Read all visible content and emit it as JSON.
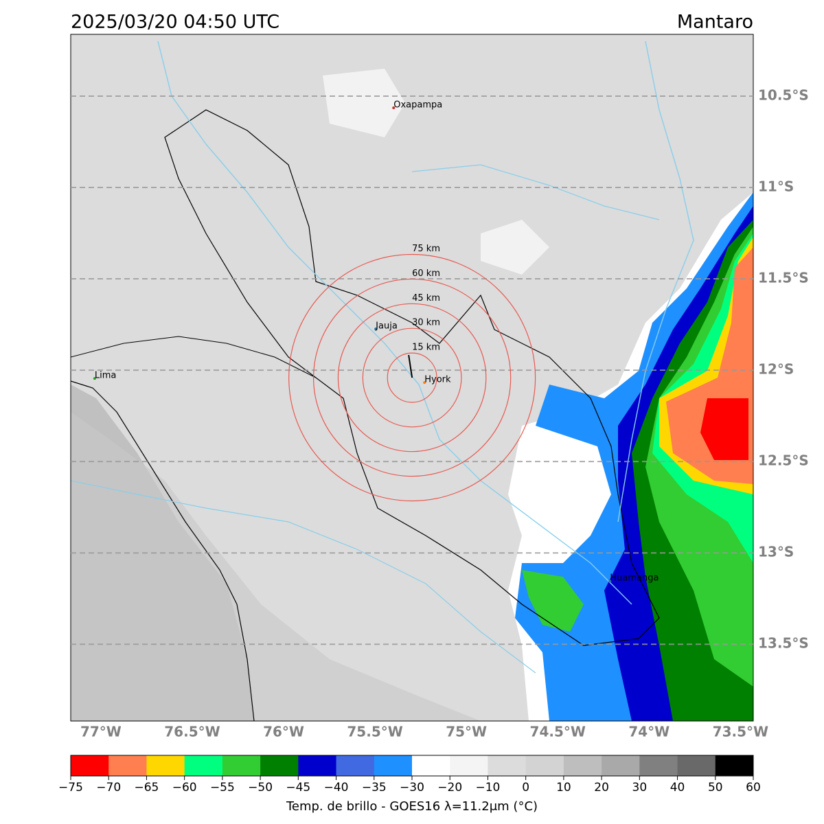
{
  "header": {
    "title": "2025/03/20 04:50 UTC",
    "region": "Mantaro"
  },
  "map": {
    "xlim": [
      -77.165,
      -73.43
    ],
    "ylim": [
      -13.92,
      -10.162
    ],
    "lat_ticks": [
      {
        "value": -10.5,
        "label": "10.5°S"
      },
      {
        "value": -11,
        "label": "11°S"
      },
      {
        "value": -11.5,
        "label": "11.5°S"
      },
      {
        "value": -12,
        "label": "12°S"
      },
      {
        "value": -12.5,
        "label": "12.5°S"
      },
      {
        "value": -13,
        "label": "13°S"
      },
      {
        "value": -13.5,
        "label": "13.5°S"
      }
    ],
    "lon_ticks": [
      {
        "value": -77,
        "label": "77°W"
      },
      {
        "value": -76.5,
        "label": "76.5°W"
      },
      {
        "value": -76,
        "label": "76°W"
      },
      {
        "value": -75.5,
        "label": "75.5°W"
      },
      {
        "value": -75,
        "label": "75°W"
      },
      {
        "value": -74.5,
        "label": "74.5°W"
      },
      {
        "value": -74,
        "label": "74°W"
      },
      {
        "value": -73.5,
        "label": "73.5°W"
      }
    ],
    "places": [
      {
        "name": "Oxapampa",
        "lon": -75.398,
        "lat": -10.564,
        "color": "#d62728"
      },
      {
        "name": "Jauja",
        "lon": -75.496,
        "lat": -11.774,
        "color": "#1f77b4"
      },
      {
        "name": "Lima",
        "lon": -77.034,
        "lat": -12.045,
        "color": "#2ca02c"
      },
      {
        "name": "Hyork",
        "lon": -75.229,
        "lat": -12.068,
        "color": "#ff7f0e"
      },
      {
        "name": "Huamanga",
        "lon": -74.214,
        "lat": -13.154,
        "color": "#1f77b4"
      }
    ],
    "rings": {
      "center": [
        -75.297,
        -12.041
      ],
      "radii_km": [
        15,
        30,
        45,
        60,
        75
      ],
      "labels": [
        "15 km",
        "30 km",
        "45 km",
        "60 km",
        "75 km"
      ],
      "color": "#e8584f"
    }
  },
  "colorbar": {
    "ticks": [
      {
        "value": -75,
        "label": "−75"
      },
      {
        "value": -70,
        "label": "−70"
      },
      {
        "value": -65,
        "label": "−65"
      },
      {
        "value": -60,
        "label": "−60"
      },
      {
        "value": -55,
        "label": "−55"
      },
      {
        "value": -50,
        "label": "−50"
      },
      {
        "value": -45,
        "label": "−45"
      },
      {
        "value": -40,
        "label": "−40"
      },
      {
        "value": -35,
        "label": "−35"
      },
      {
        "value": -30,
        "label": "−30"
      },
      {
        "value": -20,
        "label": "−20"
      },
      {
        "value": -10,
        "label": "−10"
      },
      0,
      10,
      20,
      30,
      40,
      50,
      60
    ],
    "colors": [
      "#ff0000",
      "#ff7f50",
      "#ffd700",
      "#00ff7f",
      "#32cd32",
      "#008000",
      "#0000cd",
      "#4169e1",
      "#1e90ff",
      "#ffffff",
      "#f4f4f4",
      "#dcdcdc",
      "#d3d3d3",
      "#bebebe",
      "#a9a9a9",
      "#808080",
      "#696969",
      "#000000"
    ],
    "label": "Temp. de brillo - GOES16 λ=11.2μm (°C)"
  }
}
